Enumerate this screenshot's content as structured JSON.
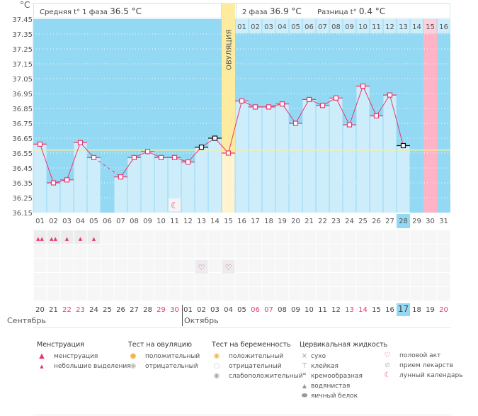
{
  "header": {
    "unit": "°C",
    "phase1_label": "Средняя t° 1 фаза",
    "phase1_value": "36.5 °C",
    "phase2_label": "2 фаза",
    "phase2_value": "36.9 °C",
    "diff_label": "Разница t°",
    "diff_value": "0.4 °C",
    "ovulation_label": "ОВУЛЯЦИЯ"
  },
  "colors": {
    "sky": "#93d9f3",
    "bar": "#cdedfb",
    "ovulation": "#fdeb9f",
    "period_expected": "#ffb3c7",
    "line": "#e8386f",
    "coverline": "#f5ef9e",
    "today": "#93d9f3",
    "weekend": "#e8386f"
  },
  "chart_data": {
    "type": "line",
    "title": "",
    "ylabel": "°C",
    "ylim": [
      36.15,
      37.45
    ],
    "yticks": [
      "37.45",
      "37.35",
      "37.25",
      "37.15",
      "37.05",
      "36.95",
      "36.85",
      "36.75",
      "36.65",
      "36.55",
      "36.45",
      "36.35",
      "36.25",
      "36.15"
    ],
    "coverline": 36.57,
    "ovulation_day": 15,
    "expected_period_day": 30,
    "today_day": 28,
    "x": [
      "01",
      "02",
      "03",
      "04",
      "05",
      "06",
      "07",
      "08",
      "09",
      "10",
      "11",
      "12",
      "13",
      "14",
      "15",
      "16",
      "17",
      "18",
      "19",
      "20",
      "21",
      "22",
      "23",
      "24",
      "25",
      "26",
      "27",
      "28",
      "29",
      "30",
      "31"
    ],
    "series": [
      {
        "name": "Базальная температура",
        "values": [
          36.61,
          36.35,
          36.37,
          36.62,
          36.52,
          null,
          36.39,
          36.52,
          36.56,
          36.52,
          36.52,
          36.49,
          36.59,
          36.65,
          36.55,
          36.9,
          36.86,
          36.86,
          36.88,
          36.75,
          36.91,
          36.87,
          36.92,
          36.74,
          37.0,
          36.8,
          36.94,
          36.6,
          null,
          null,
          null
        ],
        "excluded_days": [
          13,
          14,
          28
        ]
      }
    ],
    "luteal_cycle_days": [
      "01",
      "02",
      "03",
      "04",
      "05",
      "06",
      "07",
      "08",
      "09",
      "10",
      "11",
      "12",
      "13",
      "14",
      "15",
      "16"
    ]
  },
  "calendar": {
    "dates": [
      "20",
      "21",
      "22",
      "23",
      "24",
      "25",
      "26",
      "27",
      "28",
      "29",
      "30",
      "01",
      "02",
      "03",
      "04",
      "05",
      "06",
      "07",
      "08",
      "09",
      "10",
      "11",
      "12",
      "13",
      "14",
      "15",
      "16",
      "17",
      "18",
      "19",
      "20"
    ],
    "weekend_indices": [
      2,
      3,
      9,
      10,
      16,
      17,
      23,
      24,
      30
    ],
    "today_index": 27,
    "month_sep": "Сентябрь",
    "month_oct": "Октябрь",
    "menstruation": [
      "heavy",
      "heavy",
      "light",
      "light",
      "light"
    ],
    "intercourse_days": [
      13,
      15
    ],
    "moon_day": 11
  },
  "legend": {
    "menstruation": {
      "title": "Менструация",
      "items": [
        "менструация",
        "небольшие выделения"
      ]
    },
    "ovulation_test": {
      "title": "Тест на овуляцию",
      "items": [
        "положительный",
        "отрицательный"
      ]
    },
    "pregnancy_test": {
      "title": "Тест на беременность",
      "items": [
        "положительный",
        "отрицательный",
        "слабоположительный"
      ]
    },
    "cervical": {
      "title": "Цервикальная жидкость",
      "items": [
        "сухо",
        "клейкая",
        "кремообразная",
        "водянистая",
        "яичный белок"
      ]
    },
    "other": {
      "items": [
        "половой акт",
        "прием лекарств",
        "лунный календарь"
      ]
    }
  }
}
